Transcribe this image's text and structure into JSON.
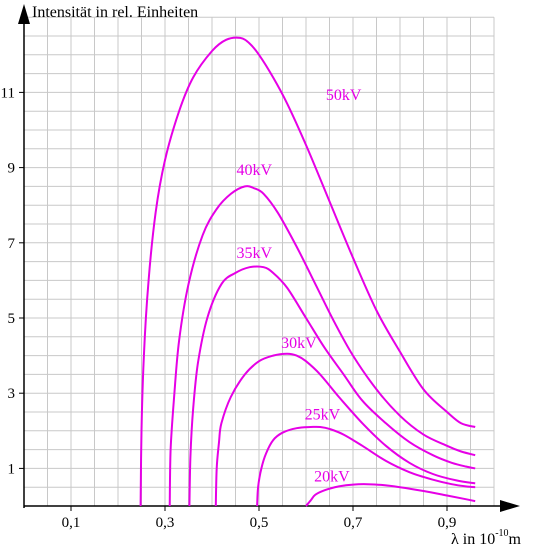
{
  "chart_data": {
    "type": "line",
    "ylabel": "Intensität in rel. Einheiten",
    "xlabel": {
      "prefix": "λ in 10",
      "exponent": "-10",
      "unit": "m"
    },
    "x_ticks": [
      {
        "value": 0.1,
        "label": "0,1"
      },
      {
        "value": 0.3,
        "label": "0,3"
      },
      {
        "value": 0.5,
        "label": "0,5"
      },
      {
        "value": 0.7,
        "label": "0,7"
      },
      {
        "value": 0.9,
        "label": "0,9"
      }
    ],
    "y_ticks": [
      {
        "value": 1,
        "label": "1"
      },
      {
        "value": 3,
        "label": "3"
      },
      {
        "value": 5,
        "label": "5"
      },
      {
        "value": 7,
        "label": "7"
      },
      {
        "value": 9,
        "label": "9"
      },
      {
        "value": 11,
        "label": "11"
      }
    ],
    "xlim": [
      0,
      1.05
    ],
    "ylim": [
      0,
      13
    ],
    "grid": true,
    "series_color": "#e600e6",
    "series": [
      {
        "name": "50kV",
        "label_at": [
          0.68,
          10.8
        ],
        "x": [
          0.248,
          0.25,
          0.255,
          0.265,
          0.28,
          0.3,
          0.33,
          0.36,
          0.4,
          0.43,
          0.46,
          0.48,
          0.5,
          0.53,
          0.56,
          0.6,
          0.65,
          0.7,
          0.75,
          0.8,
          0.85,
          0.9,
          0.93,
          0.96
        ],
        "y": [
          0,
          2.0,
          4.0,
          6.0,
          7.8,
          9.2,
          10.5,
          11.4,
          12.1,
          12.4,
          12.45,
          12.3,
          12.0,
          11.4,
          10.7,
          9.6,
          8.1,
          6.6,
          5.2,
          4.1,
          3.1,
          2.5,
          2.2,
          2.1
        ]
      },
      {
        "name": "40kV",
        "label_at": [
          0.49,
          8.8
        ],
        "x": [
          0.31,
          0.312,
          0.32,
          0.33,
          0.35,
          0.38,
          0.41,
          0.44,
          0.47,
          0.49,
          0.51,
          0.54,
          0.58,
          0.62,
          0.66,
          0.7,
          0.75,
          0.8,
          0.85,
          0.9,
          0.93,
          0.96
        ],
        "y": [
          0,
          1.5,
          3.0,
          4.4,
          5.9,
          7.2,
          7.9,
          8.3,
          8.5,
          8.45,
          8.3,
          7.8,
          6.9,
          5.9,
          4.9,
          4.0,
          3.1,
          2.4,
          1.9,
          1.6,
          1.45,
          1.35
        ]
      },
      {
        "name": "35kV",
        "label_at": [
          0.49,
          6.6
        ],
        "x": [
          0.352,
          0.354,
          0.36,
          0.37,
          0.39,
          0.42,
          0.45,
          0.48,
          0.51,
          0.53,
          0.56,
          0.6,
          0.64,
          0.68,
          0.72,
          0.77,
          0.82,
          0.87,
          0.91,
          0.94,
          0.96
        ],
        "y": [
          0,
          1.3,
          2.6,
          3.8,
          5.0,
          5.9,
          6.2,
          6.35,
          6.35,
          6.2,
          5.8,
          5.0,
          4.2,
          3.5,
          2.8,
          2.2,
          1.7,
          1.35,
          1.15,
          1.05,
          1.0
        ]
      },
      {
        "name": "30kV",
        "label_at": [
          0.585,
          4.2
        ],
        "x": [
          0.408,
          0.41,
          0.415,
          0.42,
          0.44,
          0.47,
          0.5,
          0.53,
          0.56,
          0.58,
          0.6,
          0.63,
          0.67,
          0.72,
          0.77,
          0.82,
          0.87,
          0.92,
          0.96
        ],
        "y": [
          0,
          1.0,
          1.7,
          2.2,
          2.9,
          3.5,
          3.85,
          4.0,
          4.05,
          4.0,
          3.85,
          3.5,
          2.9,
          2.2,
          1.6,
          1.15,
          0.85,
          0.68,
          0.6
        ]
      },
      {
        "name": "25kV",
        "label_at": [
          0.635,
          2.3
        ],
        "x": [
          0.496,
          0.498,
          0.505,
          0.515,
          0.53,
          0.55,
          0.58,
          0.61,
          0.63,
          0.65,
          0.68,
          0.72,
          0.77,
          0.82,
          0.87,
          0.91,
          0.94,
          0.96
        ],
        "y": [
          0,
          0.5,
          1.0,
          1.4,
          1.75,
          1.95,
          2.07,
          2.1,
          2.1,
          2.05,
          1.9,
          1.6,
          1.2,
          0.9,
          0.7,
          0.58,
          0.52,
          0.5
        ]
      },
      {
        "name": "20kV",
        "label_at": [
          0.655,
          0.65
        ],
        "x": [
          0.6,
          0.61,
          0.62,
          0.64,
          0.67,
          0.7,
          0.73,
          0.76,
          0.8,
          0.85,
          0.9,
          0.94,
          0.96
        ],
        "y": [
          0,
          0.15,
          0.3,
          0.42,
          0.52,
          0.57,
          0.58,
          0.56,
          0.5,
          0.4,
          0.28,
          0.18,
          0.13
        ]
      }
    ]
  }
}
